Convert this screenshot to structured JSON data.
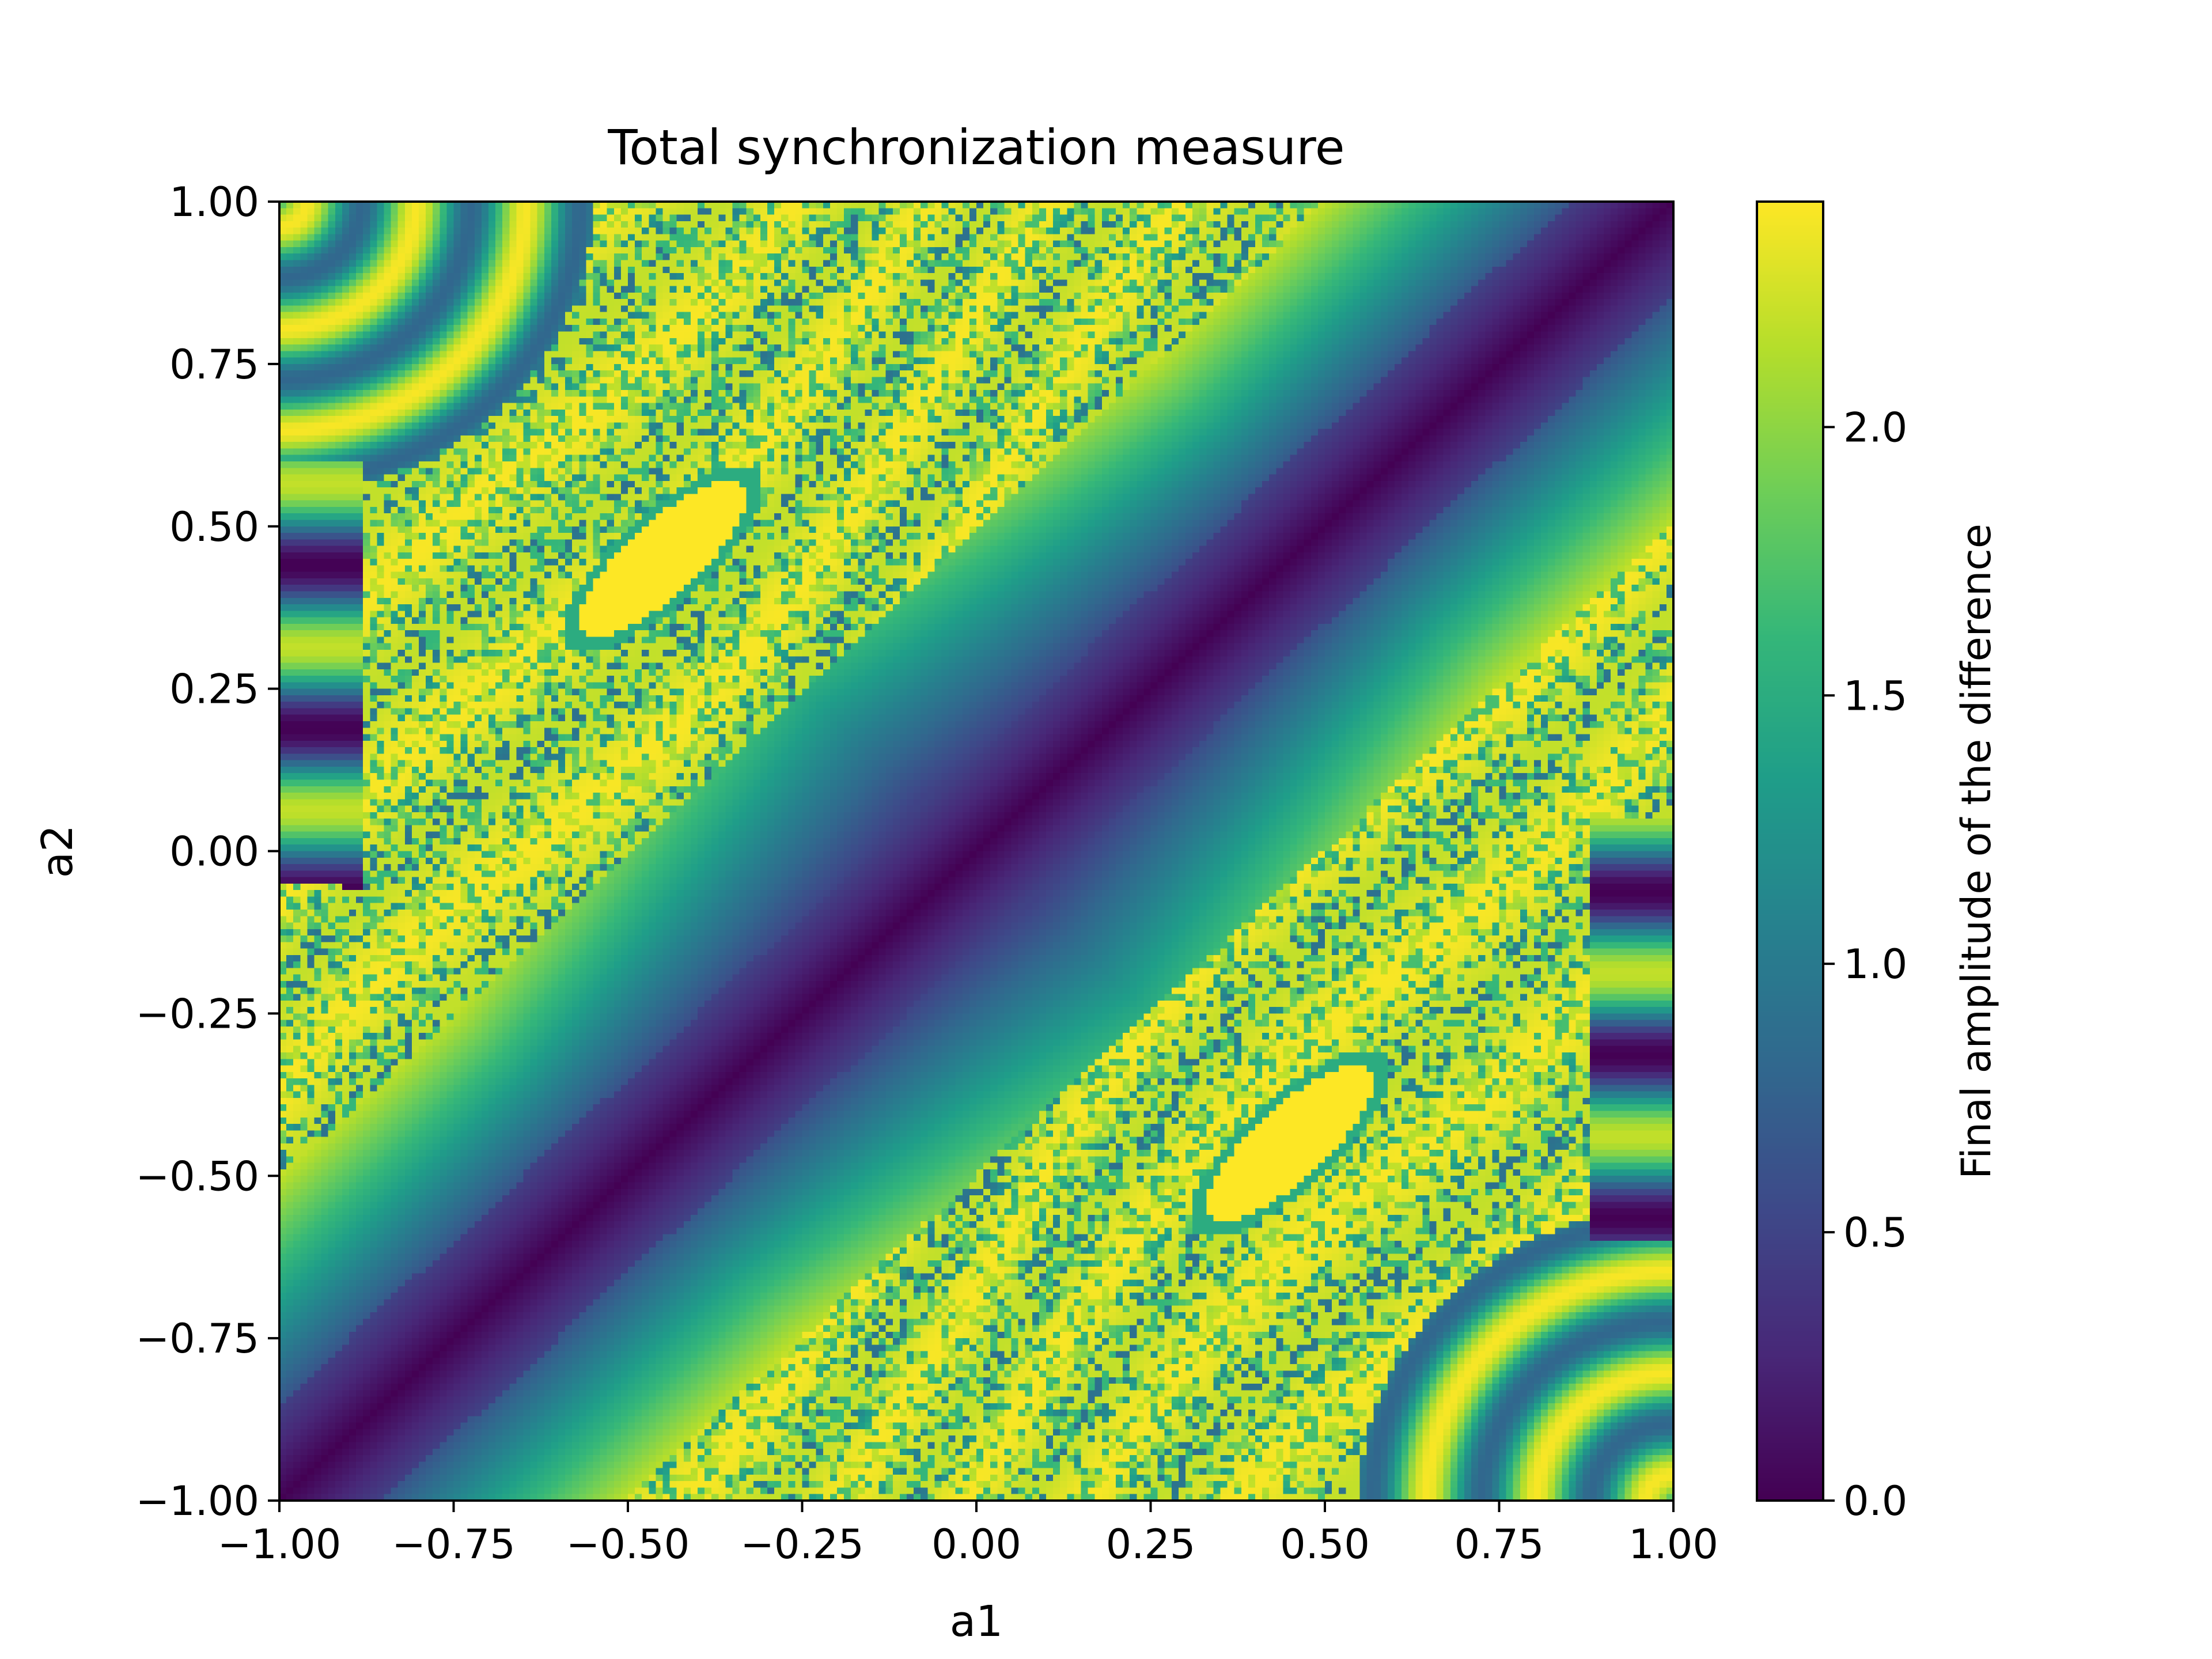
{
  "chart_data": {
    "type": "heatmap",
    "title": "Total synchronization measure",
    "xlabel": "a1",
    "ylabel": "a2",
    "xlim": [
      -1.0,
      1.0
    ],
    "ylim": [
      -1.0,
      1.0
    ],
    "xticks": [
      -1.0,
      -0.75,
      -0.5,
      -0.25,
      0.0,
      0.25,
      0.5,
      0.75,
      1.0
    ],
    "xtick_labels": [
      "−1.00",
      "−0.75",
      "−0.50",
      "−0.25",
      "0.00",
      "0.25",
      "0.50",
      "0.75",
      "1.00"
    ],
    "yticks": [
      1.0,
      0.75,
      0.5,
      0.25,
      0.0,
      -0.25,
      -0.5,
      -0.75,
      -1.0
    ],
    "ytick_labels": [
      "1.00",
      "0.75",
      "0.50",
      "0.25",
      "0.00",
      "−0.25",
      "−0.50",
      "−0.75",
      "−1.00"
    ],
    "grid_resolution": 200,
    "colorbar": {
      "label": "Final amplitude of the difference",
      "range": [
        0.0,
        2.42
      ],
      "ticks": [
        0.0,
        0.5,
        1.0,
        1.5,
        2.0
      ],
      "tick_labels": [
        "0.0",
        "0.5",
        "1.0",
        "1.5",
        "2.0"
      ],
      "colormap": "viridis"
    },
    "description_of_field": {
      "diagonal_a1_equals_a2": 0.0,
      "ellipse_centers": [
        [
          -0.45,
          0.45
        ],
        [
          0.45,
          -0.45
        ]
      ],
      "ellipse_value": 2.42
    }
  },
  "colors": {
    "viridis": [
      "#440154",
      "#482878",
      "#3e4989",
      "#31688e",
      "#26828e",
      "#1f9e89",
      "#35b779",
      "#6ece58",
      "#b5de2b",
      "#fde725"
    ]
  }
}
